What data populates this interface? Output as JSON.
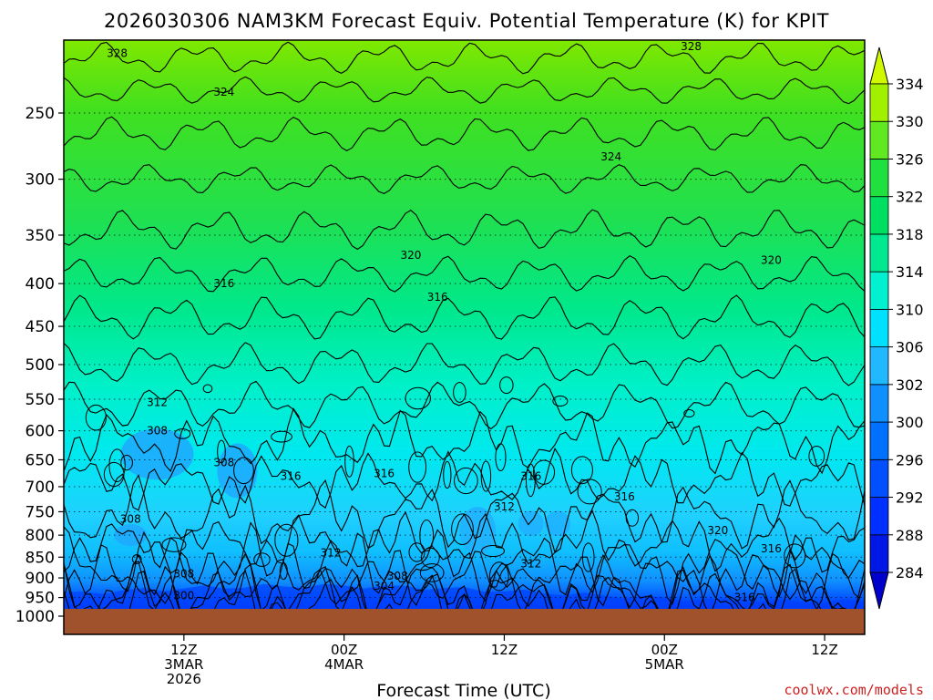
{
  "chart_data": {
    "type": "heatmap",
    "title": "2026030306 NAM3KM Forecast Equiv. Potential Temperature (K) for KPIT",
    "xlabel": "Forecast Time (UTC)",
    "ylabel": "",
    "y_scale": "log-pressure",
    "y_inverted": true,
    "yticks": [
      250,
      300,
      350,
      400,
      450,
      500,
      550,
      600,
      650,
      700,
      750,
      800,
      850,
      900,
      950,
      1000
    ],
    "ylim": [
      200,
      1020
    ],
    "xticks": [
      {
        "line1": "12Z",
        "line2": "3MAR",
        "line3": "2026"
      },
      {
        "line1": "00Z",
        "line2": "4MAR",
        "line3": ""
      },
      {
        "line1": "12Z",
        "line2": "",
        "line3": ""
      },
      {
        "line1": "00Z",
        "line2": "5MAR",
        "line3": ""
      },
      {
        "line1": "12Z",
        "line2": "",
        "line3": ""
      }
    ],
    "x_hours": [
      9,
      21,
      33,
      45,
      57
    ],
    "xtick_hours": [
      12,
      24,
      36,
      48,
      60
    ],
    "xlim_hours": [
      3,
      63
    ],
    "grid": true,
    "colorbar": {
      "levels": [
        284,
        288,
        292,
        296,
        300,
        302,
        306,
        310,
        314,
        318,
        322,
        326,
        330,
        334
      ],
      "colors": [
        "#0000cc",
        "#0018e6",
        "#0030ff",
        "#0050ff",
        "#0070ff",
        "#1090ff",
        "#20b8ff",
        "#00e0ff",
        "#00f0d0",
        "#00e890",
        "#00e060",
        "#20e040",
        "#60e820",
        "#a0f000",
        "#d0f800"
      ]
    },
    "contour_interval": 4,
    "contour_labels": [
      {
        "value": "328",
        "hour": 7,
        "p": 212
      },
      {
        "value": "324",
        "hour": 15,
        "p": 236
      },
      {
        "value": "328",
        "hour": 50,
        "p": 208
      },
      {
        "value": "324",
        "hour": 44,
        "p": 282
      },
      {
        "value": "320",
        "hour": 29,
        "p": 370
      },
      {
        "value": "320",
        "hour": 56,
        "p": 375
      },
      {
        "value": "316",
        "hour": 15,
        "p": 400
      },
      {
        "value": "316",
        "hour": 31,
        "p": 415
      },
      {
        "value": "312",
        "hour": 10,
        "p": 555
      },
      {
        "value": "308",
        "hour": 10,
        "p": 600
      },
      {
        "value": "308",
        "hour": 15,
        "p": 655
      },
      {
        "value": "316",
        "hour": 20,
        "p": 680
      },
      {
        "value": "316",
        "hour": 27,
        "p": 675
      },
      {
        "value": "316",
        "hour": 38,
        "p": 680
      },
      {
        "value": "312",
        "hour": 36,
        "p": 740
      },
      {
        "value": "316",
        "hour": 45,
        "p": 720
      },
      {
        "value": "308",
        "hour": 8,
        "p": 765
      },
      {
        "value": "320",
        "hour": 52,
        "p": 790
      },
      {
        "value": "316",
        "hour": 56,
        "p": 830
      },
      {
        "value": "312",
        "hour": 23,
        "p": 840
      },
      {
        "value": "312",
        "hour": 38,
        "p": 865
      },
      {
        "value": "308",
        "hour": 12,
        "p": 890
      },
      {
        "value": "308",
        "hour": 28,
        "p": 895
      },
      {
        "value": "304",
        "hour": 27,
        "p": 920
      },
      {
        "value": "300",
        "hour": 12,
        "p": 945
      },
      {
        "value": "316",
        "hour": 54,
        "p": 950
      }
    ],
    "surface_color": "#a0522d"
  },
  "credit": "coolwx.com/models"
}
